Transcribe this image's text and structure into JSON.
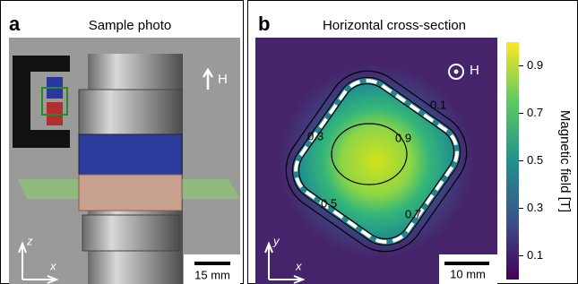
{
  "panels": [
    {
      "letter": "a",
      "title": "Sample photo",
      "field_label": "H",
      "axis_labels": [
        "z",
        "x"
      ],
      "scale_bar": "15 mm"
    },
    {
      "letter": "b",
      "title": "Horizontal cross-section",
      "field_label": "H",
      "axis_labels": [
        "y",
        "x"
      ],
      "scale_bar": "10 mm",
      "contour_labels": [
        "0.1",
        "0.3",
        "0.5",
        "0.7",
        "0.9"
      ],
      "colorbar": {
        "label": "Magnetic field [T]",
        "lim": [
          0.0,
          1.0
        ],
        "ticks": [
          0.1,
          0.3,
          0.5,
          0.7,
          0.9
        ]
      }
    }
  ]
}
